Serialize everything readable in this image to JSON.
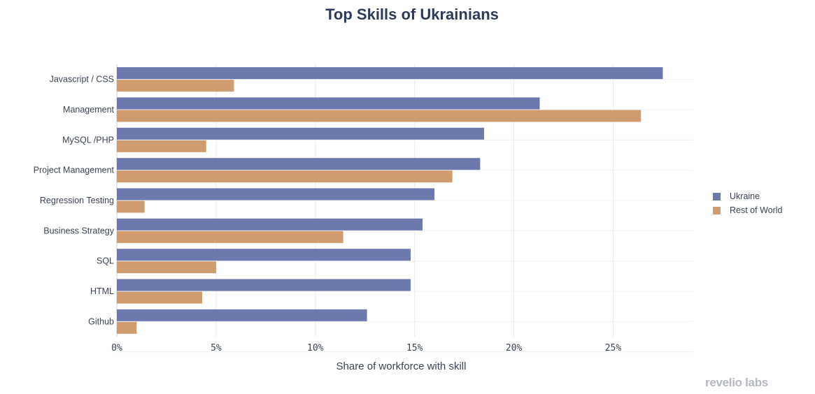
{
  "chart_data": {
    "type": "bar",
    "orientation": "horizontal",
    "title": "Top Skills of Ukrainians",
    "xlabel": "Share of workforce with skill",
    "ylabel": "",
    "xlim": [
      0,
      29
    ],
    "x_ticks": [
      0,
      5,
      10,
      15,
      20,
      25
    ],
    "x_tick_labels": [
      "0%",
      "5%",
      "10%",
      "15%",
      "20%",
      "25%"
    ],
    "grid": true,
    "legend_position": "right",
    "categories": [
      "Javascript / CSS",
      "Management",
      "MySQL /PHP",
      "Project Management",
      "Regression Testing",
      "Business Strategy",
      "SQL",
      "HTML",
      "Github"
    ],
    "series": [
      {
        "name": "Ukraine",
        "color": "#6d78ad",
        "values": [
          27.5,
          21.3,
          18.5,
          18.3,
          16.0,
          15.4,
          14.8,
          14.8,
          12.6
        ]
      },
      {
        "name": "Rest of World",
        "color": "#cf9c6f",
        "values": [
          5.9,
          26.4,
          4.5,
          16.9,
          1.4,
          11.4,
          5.0,
          4.3,
          1.0
        ]
      }
    ]
  },
  "brand": "revelio labs"
}
